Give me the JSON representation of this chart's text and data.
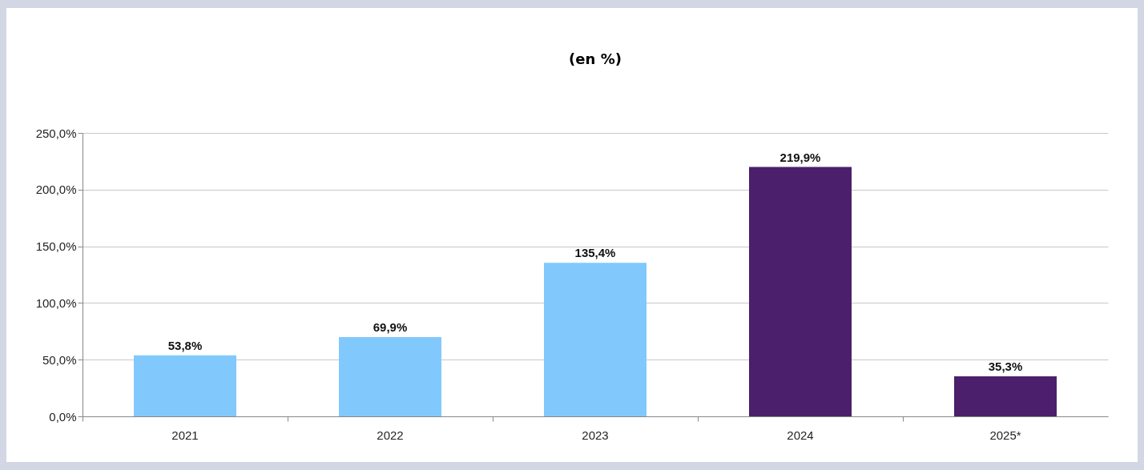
{
  "chart_data": {
    "type": "bar",
    "title": "(en %)",
    "categories": [
      "2021",
      "2022",
      "2023",
      "2024",
      "2025*"
    ],
    "values": [
      53.8,
      69.9,
      135.4,
      219.9,
      35.3
    ],
    "colors": [
      "#81c9fc",
      "#81c9fc",
      "#81c9fc",
      "#4b1f6b",
      "#4b1f6b"
    ],
    "value_labels": [
      "53,8%",
      "69,9%",
      "135,4%",
      "219,9%",
      "35,3%"
    ],
    "ylim": [
      0,
      250
    ],
    "yticks": [
      {
        "value": 0,
        "label": "0,0%"
      },
      {
        "value": 50,
        "label": "50,0%"
      },
      {
        "value": 100,
        "label": "100,0%"
      },
      {
        "value": 150,
        "label": "150,0%"
      },
      {
        "value": 200,
        "label": "200,0%"
      },
      {
        "value": 250,
        "label": "250,0%"
      }
    ],
    "grid": "y"
  }
}
